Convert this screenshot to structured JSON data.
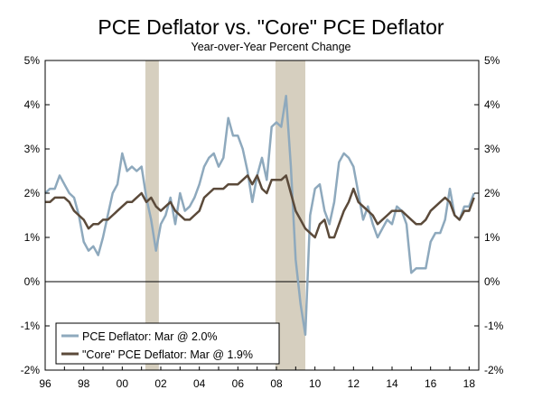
{
  "chart_data": {
    "type": "line",
    "title": "PCE Deflator vs. \"Core\" PCE Deflator",
    "subtitle": "Year-over-Year Percent Change",
    "xlabel": "",
    "ylabel": "",
    "x_tick_labels": [
      "96",
      "98",
      "00",
      "02",
      "04",
      "06",
      "08",
      "10",
      "12",
      "14",
      "16",
      "18"
    ],
    "y_tick_labels": [
      "-2%",
      "-1%",
      "0%",
      "1%",
      "2%",
      "3%",
      "4%",
      "5%"
    ],
    "y_tick_values": [
      -2,
      -1,
      0,
      1,
      2,
      3,
      4,
      5
    ],
    "xlim": [
      1996.0,
      2018.5
    ],
    "ylim": [
      -2,
      5
    ],
    "recessions": [
      {
        "start": 2001.2,
        "end": 2001.9
      },
      {
        "start": 2007.95,
        "end": 2009.5
      }
    ],
    "colors": {
      "headline": "#8ea9bd",
      "core": "#5b4a3a",
      "recession": "#d6cfbf",
      "axis": "#000000"
    },
    "legend": {
      "position": "bottom-left",
      "entries": [
        "PCE Deflator: Mar @ 2.0%",
        "\"Core\" PCE Deflator: Mar @ 1.9%"
      ]
    },
    "series": [
      {
        "name": "PCE Deflator: Mar @ 2.0%",
        "x": [
          1996.0,
          1996.25,
          1996.5,
          1996.75,
          1997.0,
          1997.25,
          1997.5,
          1997.75,
          1998.0,
          1998.25,
          1998.5,
          1998.75,
          1999.0,
          1999.25,
          1999.5,
          1999.75,
          2000.0,
          2000.25,
          2000.5,
          2000.75,
          2001.0,
          2001.25,
          2001.5,
          2001.75,
          2002.0,
          2002.25,
          2002.5,
          2002.75,
          2003.0,
          2003.25,
          2003.5,
          2003.75,
          2004.0,
          2004.25,
          2004.5,
          2004.75,
          2005.0,
          2005.25,
          2005.5,
          2005.75,
          2006.0,
          2006.25,
          2006.5,
          2006.75,
          2007.0,
          2007.25,
          2007.5,
          2007.75,
          2008.0,
          2008.25,
          2008.5,
          2008.75,
          2009.0,
          2009.25,
          2009.5,
          2009.75,
          2010.0,
          2010.25,
          2010.5,
          2010.75,
          2011.0,
          2011.25,
          2011.5,
          2011.75,
          2012.0,
          2012.25,
          2012.5,
          2012.75,
          2013.0,
          2013.25,
          2013.5,
          2013.75,
          2014.0,
          2014.25,
          2014.5,
          2014.75,
          2015.0,
          2015.25,
          2015.5,
          2015.75,
          2016.0,
          2016.25,
          2016.5,
          2016.75,
          2017.0,
          2017.25,
          2017.5,
          2017.75,
          2018.0,
          2018.25
        ],
        "values": [
          2.0,
          2.1,
          2.1,
          2.4,
          2.2,
          2.0,
          1.9,
          1.5,
          0.9,
          0.7,
          0.8,
          0.6,
          1.0,
          1.5,
          2.0,
          2.2,
          2.9,
          2.5,
          2.6,
          2.5,
          2.6,
          1.9,
          1.4,
          0.7,
          1.3,
          1.5,
          1.9,
          1.3,
          2.0,
          1.6,
          1.7,
          1.9,
          2.2,
          2.6,
          2.8,
          2.9,
          2.6,
          2.8,
          3.7,
          3.3,
          3.3,
          3.0,
          2.5,
          1.8,
          2.4,
          2.8,
          2.3,
          3.5,
          3.6,
          3.5,
          4.2,
          2.6,
          0.5,
          -0.5,
          -1.2,
          1.5,
          2.1,
          2.2,
          1.6,
          1.3,
          1.8,
          2.7,
          2.9,
          2.8,
          2.6,
          2.0,
          1.4,
          1.7,
          1.3,
          1.0,
          1.2,
          1.4,
          1.3,
          1.7,
          1.6,
          1.3,
          0.2,
          0.3,
          0.3,
          0.3,
          0.9,
          1.1,
          1.1,
          1.4,
          2.1,
          1.5,
          1.4,
          1.7,
          1.7,
          2.0
        ]
      },
      {
        "name": "\"Core\" PCE Deflator: Mar @ 1.9%",
        "x": [
          1996.0,
          1996.25,
          1996.5,
          1996.75,
          1997.0,
          1997.25,
          1997.5,
          1997.75,
          1998.0,
          1998.25,
          1998.5,
          1998.75,
          1999.0,
          1999.25,
          1999.5,
          1999.75,
          2000.0,
          2000.25,
          2000.5,
          2000.75,
          2001.0,
          2001.25,
          2001.5,
          2001.75,
          2002.0,
          2002.25,
          2002.5,
          2002.75,
          2003.0,
          2003.25,
          2003.5,
          2003.75,
          2004.0,
          2004.25,
          2004.5,
          2004.75,
          2005.0,
          2005.25,
          2005.5,
          2005.75,
          2006.0,
          2006.25,
          2006.5,
          2006.75,
          2007.0,
          2007.25,
          2007.5,
          2007.75,
          2008.0,
          2008.25,
          2008.5,
          2008.75,
          2009.0,
          2009.25,
          2009.5,
          2009.75,
          2010.0,
          2010.25,
          2010.5,
          2010.75,
          2011.0,
          2011.25,
          2011.5,
          2011.75,
          2012.0,
          2012.25,
          2012.5,
          2012.75,
          2013.0,
          2013.25,
          2013.5,
          2013.75,
          2014.0,
          2014.25,
          2014.5,
          2014.75,
          2015.0,
          2015.25,
          2015.5,
          2015.75,
          2016.0,
          2016.25,
          2016.5,
          2016.75,
          2017.0,
          2017.25,
          2017.5,
          2017.75,
          2018.0,
          2018.25
        ],
        "values": [
          1.8,
          1.8,
          1.9,
          1.9,
          1.9,
          1.8,
          1.6,
          1.5,
          1.4,
          1.2,
          1.3,
          1.3,
          1.4,
          1.4,
          1.5,
          1.6,
          1.7,
          1.8,
          1.8,
          1.9,
          2.0,
          1.8,
          1.9,
          1.7,
          1.6,
          1.7,
          1.8,
          1.6,
          1.5,
          1.4,
          1.4,
          1.5,
          1.6,
          1.9,
          2.0,
          2.1,
          2.1,
          2.1,
          2.2,
          2.2,
          2.2,
          2.3,
          2.4,
          2.2,
          2.4,
          2.1,
          2.0,
          2.3,
          2.3,
          2.3,
          2.4,
          2.0,
          1.6,
          1.4,
          1.2,
          1.1,
          1.0,
          1.3,
          1.4,
          1.0,
          1.0,
          1.3,
          1.6,
          1.8,
          2.1,
          1.8,
          1.7,
          1.6,
          1.5,
          1.3,
          1.4,
          1.5,
          1.6,
          1.6,
          1.6,
          1.5,
          1.4,
          1.3,
          1.3,
          1.4,
          1.6,
          1.7,
          1.8,
          1.9,
          1.8,
          1.5,
          1.4,
          1.6,
          1.6,
          1.9
        ]
      }
    ]
  }
}
